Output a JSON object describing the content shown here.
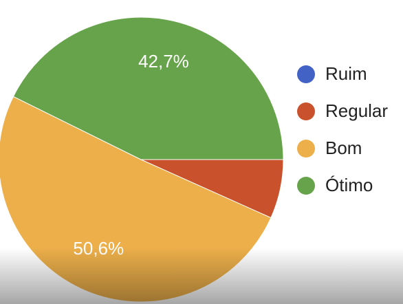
{
  "chart_data": {
    "type": "pie",
    "categories": [
      "Ruim",
      "Regular",
      "Bom",
      "Ótimo"
    ],
    "values": [
      0,
      6.7,
      50.6,
      42.7
    ],
    "value_labels": [
      null,
      null,
      "50,6%",
      "42,7%"
    ],
    "colors": [
      "#4262c5",
      "#c9522c",
      "#ecaf4a",
      "#66a34a"
    ]
  }
}
